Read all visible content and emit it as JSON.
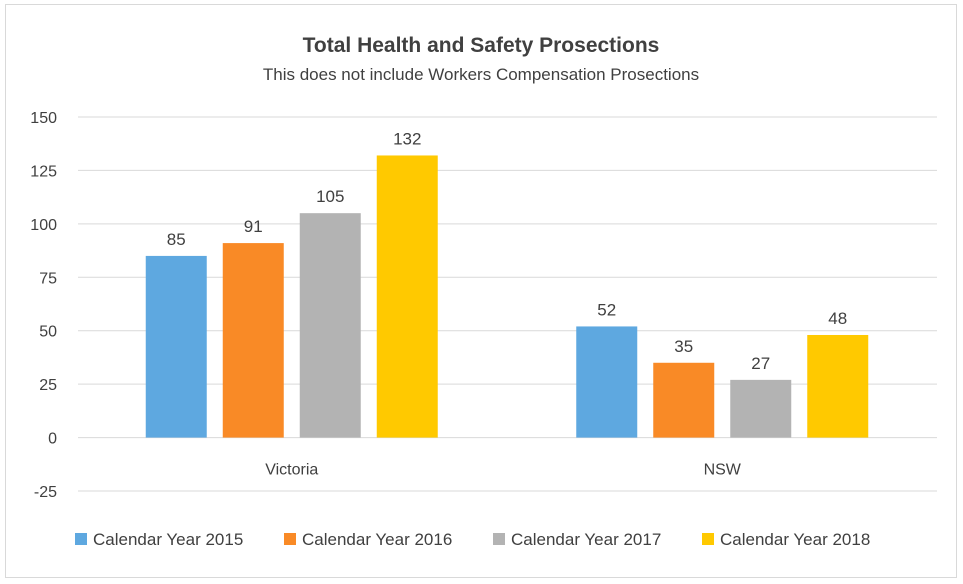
{
  "chart_data": {
    "type": "bar",
    "title": "Total Health and Safety Prosections",
    "subtitle": "This does not include Workers Compensation  Prosections",
    "categories": [
      "Victoria",
      "NSW"
    ],
    "series": [
      {
        "name": "Calendar Year 2015",
        "color": "#5ea8e0",
        "values": [
          85,
          52
        ]
      },
      {
        "name": "Calendar Year 2016",
        "color": "#f98a26",
        "values": [
          91,
          35
        ]
      },
      {
        "name": "Calendar Year 2017",
        "color": "#b3b3b3",
        "values": [
          105,
          27
        ]
      },
      {
        "name": "Calendar Year 2018",
        "color": "#ffc900",
        "values": [
          132,
          48
        ]
      }
    ],
    "yticks": [
      "150",
      "125",
      "100",
      "75",
      "50",
      "25",
      "0",
      "-25"
    ],
    "ylim": [
      -25,
      150
    ],
    "grid": true,
    "legend_position": "bottom",
    "data_labels": true
  }
}
